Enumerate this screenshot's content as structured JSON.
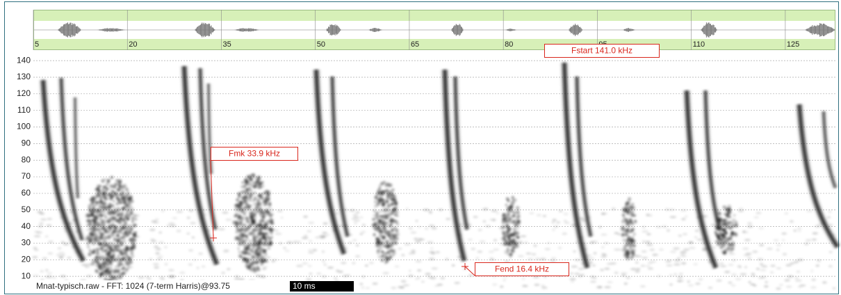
{
  "overview": {
    "xlim": [
      5,
      133
    ],
    "ticks": [
      5,
      20,
      35,
      50,
      65,
      80,
      95,
      110,
      125
    ]
  },
  "spectrogram": {
    "ylim": [
      0,
      144
    ],
    "yticks": [
      10,
      20,
      30,
      40,
      50,
      60,
      70,
      80,
      90,
      100,
      110,
      120,
      130,
      140
    ]
  },
  "annotations": {
    "fmk": "Fmk 33.9 kHz",
    "fstart": "Fstart 141.0 kHz",
    "fend": "Fend 16.4 kHz"
  },
  "status": {
    "file": "Mnat-typisch.raw - FFT: 1024 (7-term Harris)@93.75",
    "scale_bar": "10 ms"
  }
}
